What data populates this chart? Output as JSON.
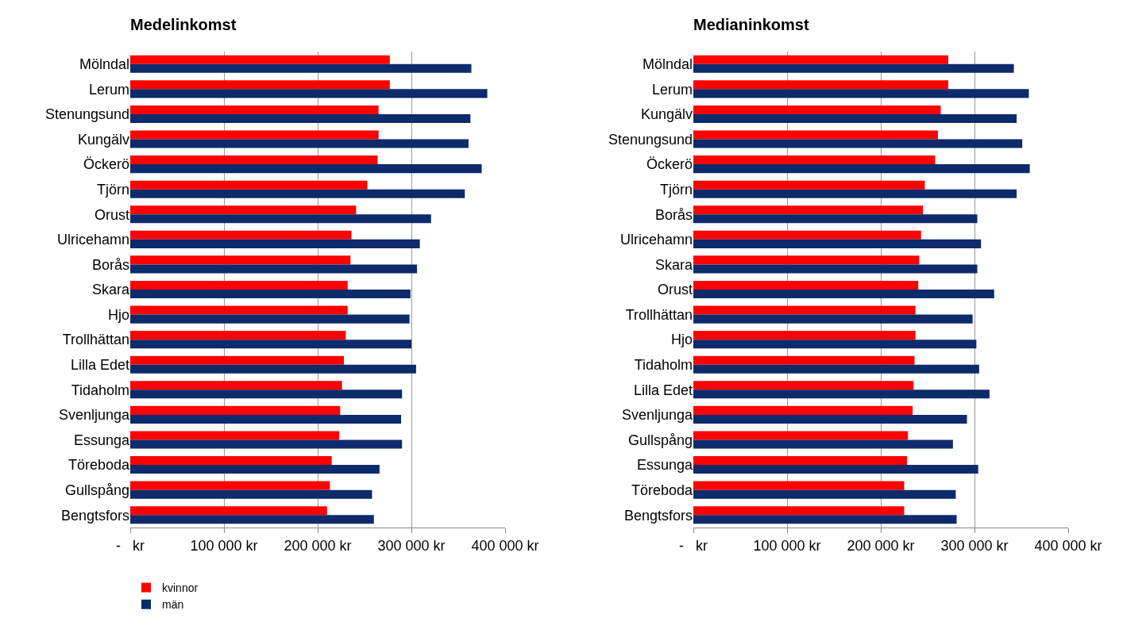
{
  "chart_data": [
    {
      "type": "bar",
      "orientation": "horizontal",
      "title": "Medelinkomst",
      "categories": [
        "Mölndal",
        "Lerum",
        "Stenungsund",
        "Kungälv",
        "Öckerö",
        "Tjörn",
        "Orust",
        "Ulricehamn",
        "Borås",
        "Skara",
        "Hjo",
        "Trollhättan",
        "Lilla Edet",
        "Tidaholm",
        "Svenljunga",
        "Essunga",
        "Töreboda",
        "Gullspång",
        "Bengtsfors"
      ],
      "series": [
        {
          "name": "kvinnor",
          "color": "#ff0000",
          "values": [
            277000,
            277000,
            265000,
            265000,
            264000,
            253000,
            241000,
            236000,
            235000,
            232000,
            232000,
            230000,
            228000,
            226000,
            224000,
            223000,
            215000,
            213000,
            210000
          ]
        },
        {
          "name": "män",
          "color": "#0d2a6b",
          "values": [
            364000,
            381000,
            363000,
            361000,
            375000,
            357000,
            321000,
            309000,
            306000,
            299000,
            298000,
            300000,
            305000,
            290000,
            289000,
            290000,
            266000,
            258000,
            260000
          ]
        }
      ],
      "xlim": [
        0,
        400000
      ],
      "xticks": [
        {
          "value": 0,
          "label": "-   kr"
        },
        {
          "value": 100000,
          "label": "100 000 kr"
        },
        {
          "value": 200000,
          "label": "200 000 kr"
        },
        {
          "value": 300000,
          "label": "300 000 kr"
        },
        {
          "value": 400000,
          "label": "400 000 kr"
        }
      ],
      "grid": "x",
      "legend": "bottom left"
    },
    {
      "type": "bar",
      "orientation": "horizontal",
      "title": "Medianinkomst",
      "categories": [
        "Mölndal",
        "Lerum",
        "Kungälv",
        "Stenungsund",
        "Öckerö",
        "Tjörn",
        "Borås",
        "Ulricehamn",
        "Skara",
        "Orust",
        "Trollhättan",
        "Hjo",
        "Tidaholm",
        "Lilla Edet",
        "Svenljunga",
        "Gullspång",
        "Essunga",
        "Töreboda",
        "Bengtsfors"
      ],
      "series": [
        {
          "color": "#ff0000",
          "values": [
            272000,
            272000,
            264000,
            261000,
            258000,
            247000,
            245000,
            243000,
            241000,
            240000,
            237000,
            237000,
            236000,
            235000,
            234000,
            229000,
            228000,
            225000,
            225000
          ]
        },
        {
          "color": "#0d2a6b",
          "values": [
            342000,
            358000,
            345000,
            351000,
            359000,
            345000,
            303000,
            307000,
            303000,
            321000,
            298000,
            302000,
            305000,
            316000,
            292000,
            277000,
            304000,
            280000,
            281000
          ]
        }
      ],
      "xlim": [
        0,
        400000
      ],
      "xticks": [
        {
          "value": 0,
          "label": "-   kr"
        },
        {
          "value": 100000,
          "label": "100 000 kr"
        },
        {
          "value": 200000,
          "label": "200 000 kr"
        },
        {
          "value": 300000,
          "label": "300 000 kr"
        },
        {
          "value": 400000,
          "label": "400 000 kr"
        }
      ],
      "grid": "x",
      "legend": false
    }
  ]
}
